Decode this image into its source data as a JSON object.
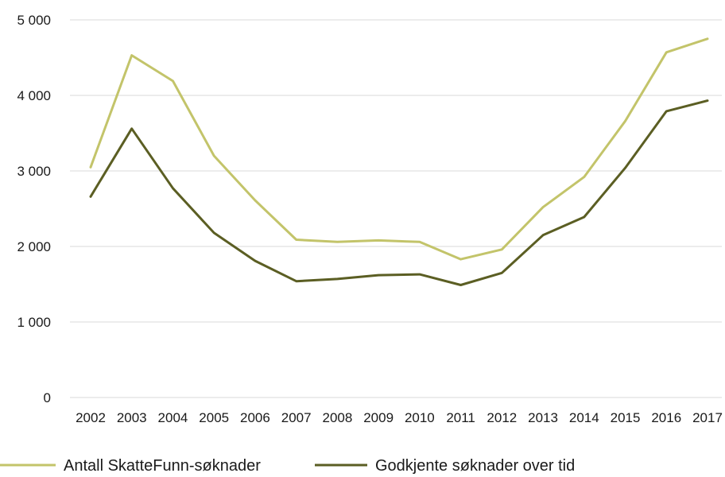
{
  "chart_data": {
    "type": "line",
    "categories": [
      "2002",
      "2003",
      "2004",
      "2005",
      "2006",
      "2007",
      "2008",
      "2009",
      "2010",
      "2011",
      "2012",
      "2013",
      "2014",
      "2015",
      "2016",
      "2017"
    ],
    "series": [
      {
        "name": "Antall SkatteFunn-søknader",
        "color": "#c3c46a",
        "values": [
          3050,
          4530,
          4190,
          3200,
          2610,
          2090,
          2060,
          2080,
          2060,
          1830,
          1960,
          2520,
          2920,
          3660,
          4570,
          4750
        ]
      },
      {
        "name": "Godkjente søknader over tid",
        "color": "#5b5e23",
        "values": [
          2660,
          3560,
          2770,
          2180,
          1810,
          1540,
          1570,
          1620,
          1630,
          1490,
          1650,
          2150,
          2390,
          3040,
          3790,
          3930
        ]
      }
    ],
    "y_ticks": [
      "0",
      "1 000",
      "2 000",
      "3 000",
      "4 000",
      "5 000"
    ],
    "ylim": [
      0,
      5000
    ],
    "grid": true,
    "legend": "bottom"
  }
}
